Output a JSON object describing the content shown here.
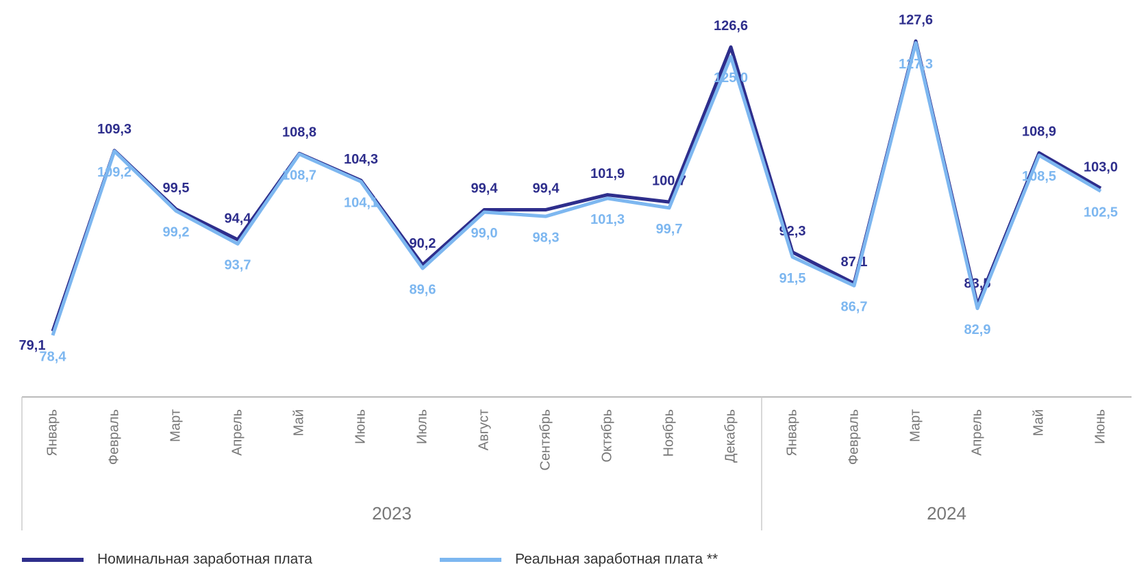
{
  "chart_data": {
    "type": "line",
    "category_groups": [
      {
        "label": "2023",
        "categories": [
          "Январь",
          "Февраль",
          "Март",
          "Апрель",
          "Май",
          "Июнь",
          "Июль",
          "Август",
          "Сентябрь",
          "Октябрь",
          "Ноябрь",
          "Декабрь"
        ]
      },
      {
        "label": "2024",
        "categories": [
          "Январь",
          "Февраль",
          "Март",
          "Апрель",
          "Май",
          "Июнь"
        ]
      }
    ],
    "series": [
      {
        "name": "Номинальная заработная  плата",
        "color": "#2e2e8c",
        "values": [
          79.1,
          109.3,
          99.5,
          94.4,
          108.8,
          104.3,
          90.2,
          99.4,
          99.4,
          101.9,
          100.7,
          126.6,
          92.3,
          87.1,
          127.6,
          83.5,
          108.9,
          103.0
        ],
        "value_labels": [
          "79,1",
          "109,3",
          "99,5",
          "94,4",
          "108,8",
          "104,3",
          "90,2",
          "99,4",
          "99,4",
          "101,9",
          "100,7",
          "126,6",
          "92,3",
          "87,1",
          "127,6",
          "83,5",
          "108,9",
          "103,0"
        ]
      },
      {
        "name": "Реальная заработная  плата **",
        "color": "#7db7f0",
        "values": [
          78.4,
          109.2,
          99.2,
          93.7,
          108.7,
          104.1,
          89.6,
          99.0,
          98.3,
          101.3,
          99.7,
          125.0,
          91.5,
          86.7,
          127.3,
          82.9,
          108.5,
          102.5
        ],
        "value_labels": [
          "78,4",
          "109,2",
          "99,2",
          "93,7",
          "108,7",
          "104,1",
          "89,6",
          "99,0",
          "98,3",
          "101,3",
          "99,7",
          "125,0",
          "91,5",
          "86,7",
          "127,3",
          "82,9",
          "108,5",
          "102,5"
        ]
      }
    ]
  }
}
